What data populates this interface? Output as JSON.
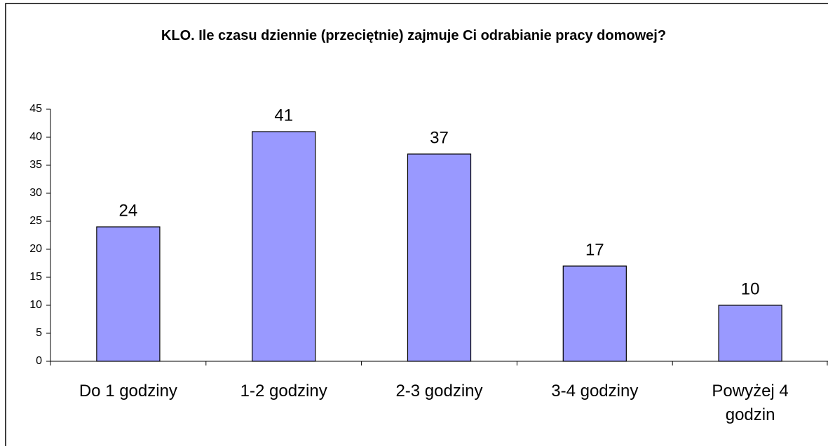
{
  "chart_data": {
    "type": "bar",
    "title": "KLO. Ile czasu dziennie (przeciętnie) zajmuje Ci odrabianie pracy domowej?",
    "categories": [
      "Do 1 godziny",
      "1-2 godziny",
      "2-3 godziny",
      "3-4 godziny",
      "Powyżej 4 godzin"
    ],
    "values": [
      24,
      41,
      37,
      17,
      10
    ],
    "color": "#9999ff",
    "ylim": [
      0,
      45
    ],
    "yticks": [
      0,
      5,
      10,
      15,
      20,
      25,
      30,
      35,
      40,
      45
    ],
    "grid": false
  }
}
